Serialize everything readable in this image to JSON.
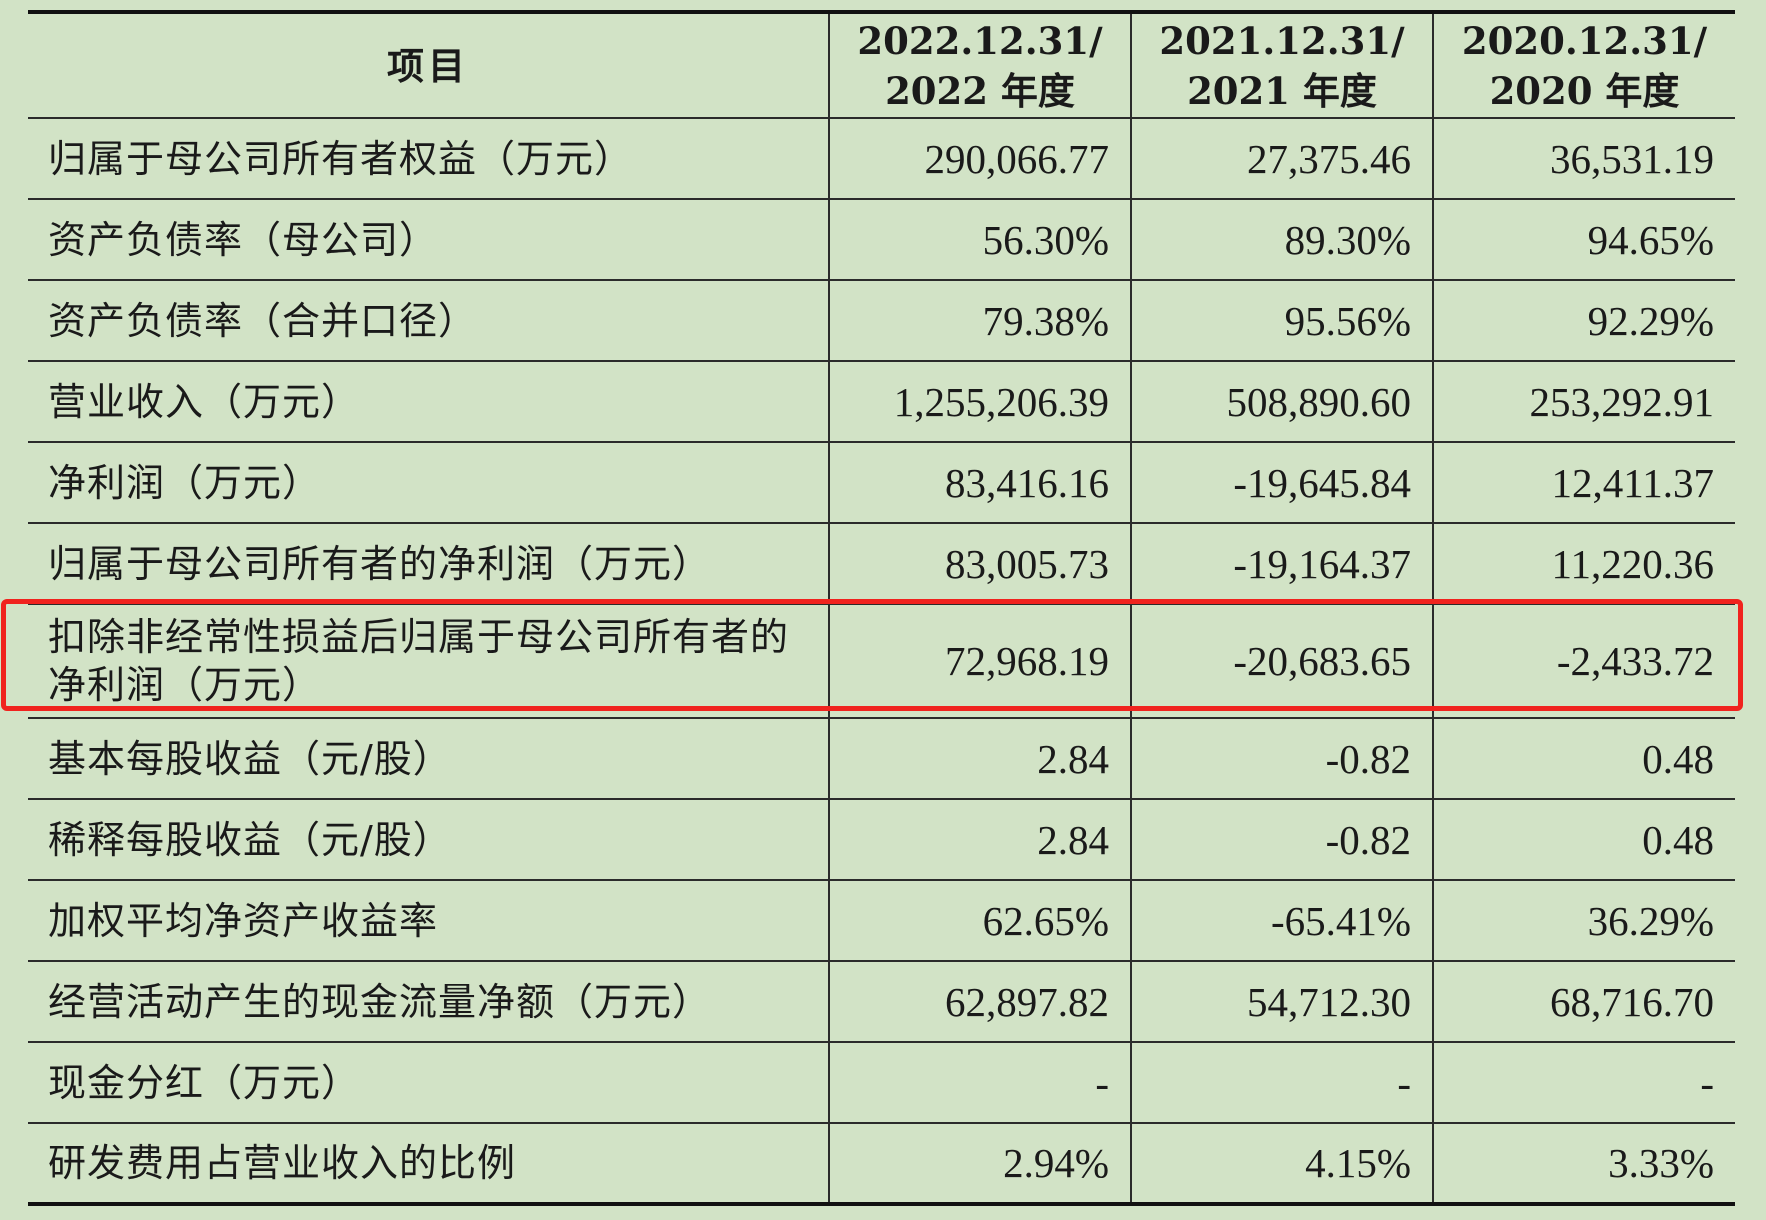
{
  "table": {
    "headers": {
      "item": "项目",
      "col1_line1": "2022.12.31/",
      "col1_line2": "2022 年度",
      "col2_line1": "2021.12.31/",
      "col2_line2": "2021 年度",
      "col3_line1": "2020.12.31/",
      "col3_line2": "2020 年度"
    },
    "rows": [
      {
        "label": "归属于母公司所有者权益（万元）",
        "v2022": "290,066.77",
        "v2021": "27,375.46",
        "v2020": "36,531.19"
      },
      {
        "label": "资产负债率（母公司）",
        "v2022": "56.30%",
        "v2021": "89.30%",
        "v2020": "94.65%"
      },
      {
        "label": "资产负债率（合并口径）",
        "v2022": "79.38%",
        "v2021": "95.56%",
        "v2020": "92.29%"
      },
      {
        "label": "营业收入（万元）",
        "v2022": "1,255,206.39",
        "v2021": "508,890.60",
        "v2020": "253,292.91"
      },
      {
        "label": "净利润（万元）",
        "v2022": "83,416.16",
        "v2021": "-19,645.84",
        "v2020": "12,411.37"
      },
      {
        "label": "归属于母公司所有者的净利润（万元）",
        "v2022": "83,005.73",
        "v2021": "-19,164.37",
        "v2020": "11,220.36"
      },
      {
        "label": "扣除非经常性损益后归属于母公司所有者的净利润（万元）",
        "v2022": "72,968.19",
        "v2021": "-20,683.65",
        "v2020": "-2,433.72"
      },
      {
        "label": "基本每股收益（元/股）",
        "v2022": "2.84",
        "v2021": "-0.82",
        "v2020": "0.48"
      },
      {
        "label": "稀释每股收益（元/股）",
        "v2022": "2.84",
        "v2021": "-0.82",
        "v2020": "0.48"
      },
      {
        "label": "加权平均净资产收益率",
        "v2022": "62.65%",
        "v2021": "-65.41%",
        "v2020": "36.29%"
      },
      {
        "label": "经营活动产生的现金流量净额（万元）",
        "v2022": "62,897.82",
        "v2021": "54,712.30",
        "v2020": "68,716.70"
      },
      {
        "label": "现金分红（万元）",
        "v2022": "-",
        "v2021": "-",
        "v2020": "-"
      },
      {
        "label": "研发费用占营业收入的比例",
        "v2022": "2.94%",
        "v2021": "4.15%",
        "v2020": "3.33%"
      }
    ]
  },
  "highlight": {
    "color": "#f0231e"
  },
  "colors": {
    "background": "#d2e3c6",
    "text": "#1a1a1a",
    "rule": "#2b2b2b"
  }
}
